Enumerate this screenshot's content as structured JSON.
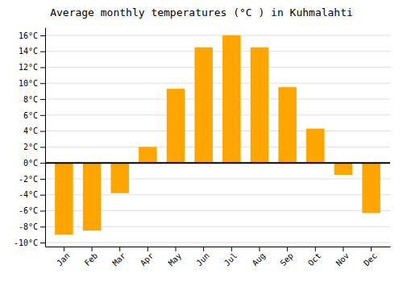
{
  "chart_data": {
    "type": "bar",
    "title": "Average monthly temperatures (°C ) in Kuhmalahti",
    "categories": [
      "Jan",
      "Feb",
      "Mar",
      "Apr",
      "May",
      "Jun",
      "Jul",
      "Aug",
      "Sep",
      "Oct",
      "Nov",
      "Dec"
    ],
    "values": [
      -9.0,
      -8.5,
      -3.8,
      2.0,
      9.3,
      14.5,
      16.0,
      14.5,
      9.5,
      4.3,
      -1.5,
      -6.3
    ],
    "color": "#FFA500",
    "ylim": [
      -10.5,
      17
    ],
    "yticks": [
      {
        "value": -10,
        "label": "-10°C"
      },
      {
        "value": -8,
        "label": "-8°C"
      },
      {
        "value": -6,
        "label": "-6°C"
      },
      {
        "value": -4,
        "label": "-4°C"
      },
      {
        "value": -2,
        "label": "-2°C"
      },
      {
        "value": 0,
        "label": "0°C"
      },
      {
        "value": 2,
        "label": "2°C"
      },
      {
        "value": 4,
        "label": "4°C"
      },
      {
        "value": 6,
        "label": "6°C"
      },
      {
        "value": 8,
        "label": "8°C"
      },
      {
        "value": 10,
        "label": "10°C"
      },
      {
        "value": 12,
        "label": "12°C"
      },
      {
        "value": 14,
        "label": "14°C"
      },
      {
        "value": 16,
        "label": "16°C"
      }
    ],
    "grid": true
  }
}
